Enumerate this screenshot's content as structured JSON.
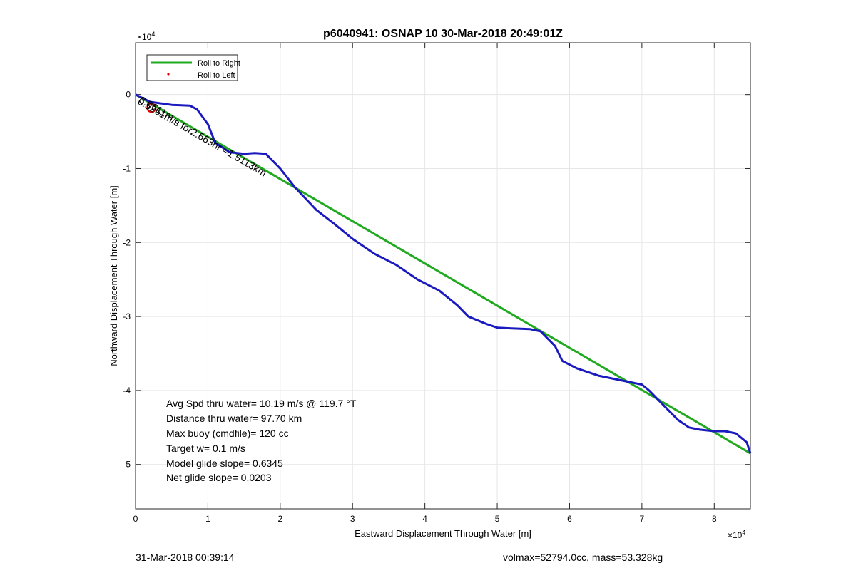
{
  "chart_data": {
    "type": "line",
    "title": "p6040941: OSNAP 10 30-Mar-2018 20:49:01Z",
    "xlabel": "Eastward Displacement Through Water [m]",
    "ylabel": "Northward Displacement Through Water [m]",
    "xlim": [
      0,
      85000
    ],
    "ylim": [
      -56000,
      7000
    ],
    "x_ticks": [
      0,
      10000,
      20000,
      30000,
      40000,
      50000,
      60000,
      70000,
      80000
    ],
    "x_tick_labels": [
      "0",
      "1",
      "2",
      "3",
      "4",
      "5",
      "6",
      "7",
      "8"
    ],
    "y_ticks": [
      0,
      -10000,
      -20000,
      -30000,
      -40000,
      -50000
    ],
    "y_tick_labels": [
      "0",
      "-1",
      "-2",
      "-3",
      "-4",
      "-5"
    ],
    "x_exponent": "×10",
    "y_exponent": "×10",
    "exponent_power": "4",
    "grid": true,
    "legend": {
      "position": "top-left",
      "entries": [
        {
          "label": "Roll to Right",
          "color": "#1faa1f",
          "style": "line"
        },
        {
          "label": "Roll to Left",
          "color": "#e00000",
          "style": "dot"
        }
      ]
    },
    "series": [
      {
        "color": "#1faa1f",
        "x": [
          0,
          85000
        ],
        "y": [
          0,
          -48500
        ]
      },
      {
        "color": "#1a1abf",
        "x": [
          0,
          2000,
          5000,
          7500,
          8500,
          10000,
          11000,
          13000,
          15000,
          16500,
          18000,
          20000,
          22000,
          25000,
          27500,
          30000,
          33000,
          36000,
          39000,
          42000,
          44500,
          46000,
          47500,
          48500,
          50000,
          52000,
          54500,
          56000,
          58000,
          59000,
          61000,
          64000,
          67000,
          70000,
          71000,
          73000,
          75000,
          76500,
          78000,
          80000,
          81500,
          83000,
          84500,
          85000
        ],
        "y": [
          0,
          -1000,
          -1400,
          -1500,
          -2000,
          -4000,
          -6500,
          -7800,
          -8000,
          -7900,
          -8000,
          -10000,
          -12500,
          -15600,
          -17500,
          -19500,
          -21500,
          -23000,
          -25000,
          -26500,
          -28500,
          -30000,
          -30600,
          -31000,
          -31500,
          -31600,
          -31700,
          -32000,
          -34000,
          -36000,
          -37000,
          -38000,
          -38600,
          -39200,
          -40000,
          -42000,
          -44000,
          -45000,
          -45300,
          -45500,
          -45500,
          -45800,
          -47000,
          -48500
        ]
      }
    ],
    "annotations": [
      {
        "text": "0.5261m/s for2.663hr =1.5113km",
        "x": 200,
        "y": -1200,
        "rotation": 30
      },
      {
        "text": "3.9611m",
        "x": 400,
        "y": -1000,
        "rotation": 30
      }
    ],
    "marker_circle": {
      "x": 2200,
      "y": -1800,
      "color": "#e00000"
    },
    "stats": [
      "Avg Spd thru water= 10.19 m/s @ 119.7 °T",
      "Distance thru water= 97.70 km",
      "Max buoy (cmdfile)= 120 cc",
      "Target w= 0.1 m/s",
      "Model glide slope= 0.6345",
      "Net glide slope= 0.0203"
    ]
  },
  "footer": {
    "left": "31-Mar-2018 00:39:14",
    "right": "volmax=52794.0cc, mass=53.328kg"
  }
}
